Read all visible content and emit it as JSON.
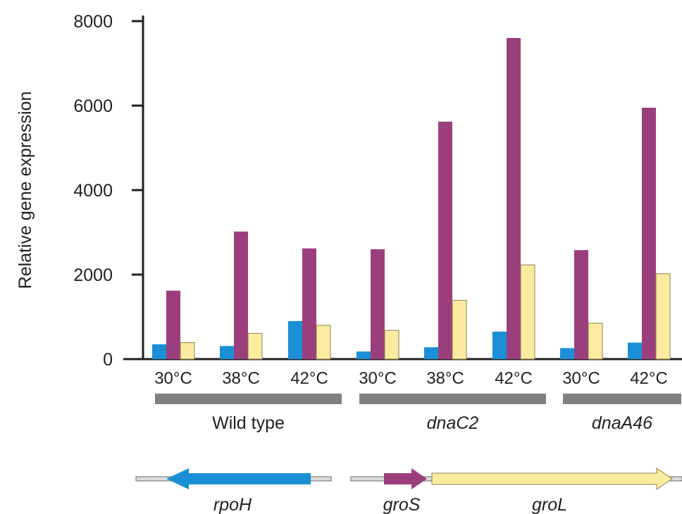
{
  "chart_data": {
    "type": "bar",
    "ylabel": "Relative gene expression",
    "ylim": [
      0,
      8000
    ],
    "yticks": [
      "0",
      "2000",
      "4000",
      "6000",
      "8000"
    ],
    "categories": [
      "30°C",
      "38°C",
      "42°C",
      "30°C",
      "38°C",
      "42°C",
      "30°C",
      "42°C"
    ],
    "groups": [
      {
        "label": "Wild type",
        "italic": false,
        "categories": [
          0,
          1,
          2
        ]
      },
      {
        "label": "dnaC2",
        "italic": true,
        "categories": [
          3,
          4,
          5
        ]
      },
      {
        "label": "dnaA46",
        "italic": true,
        "categories": [
          6,
          7
        ]
      }
    ],
    "series": [
      {
        "gene": "rpoH",
        "color": "#1a8fd6",
        "values": [
          350,
          310,
          900,
          180,
          280,
          650,
          260,
          390
        ]
      },
      {
        "gene": "groS",
        "color": "#9b3f7c",
        "values": [
          1620,
          3020,
          2620,
          2600,
          5620,
          7600,
          2580,
          5950
        ]
      },
      {
        "gene": "groL",
        "color": "#fbeba0",
        "values": [
          390,
          610,
          800,
          680,
          1390,
          2230,
          850,
          2020
        ]
      }
    ],
    "bar_edge_color": "#8a8050",
    "group_bar_color": "#808080",
    "gene_map": [
      {
        "label": "rpoH",
        "color": "#1a8fd6",
        "direction": "left"
      },
      {
        "label": "groS",
        "color": "#9b3f7c",
        "direction": "right"
      },
      {
        "label": "groL",
        "color": "#fbeba0",
        "direction": "right"
      }
    ]
  }
}
